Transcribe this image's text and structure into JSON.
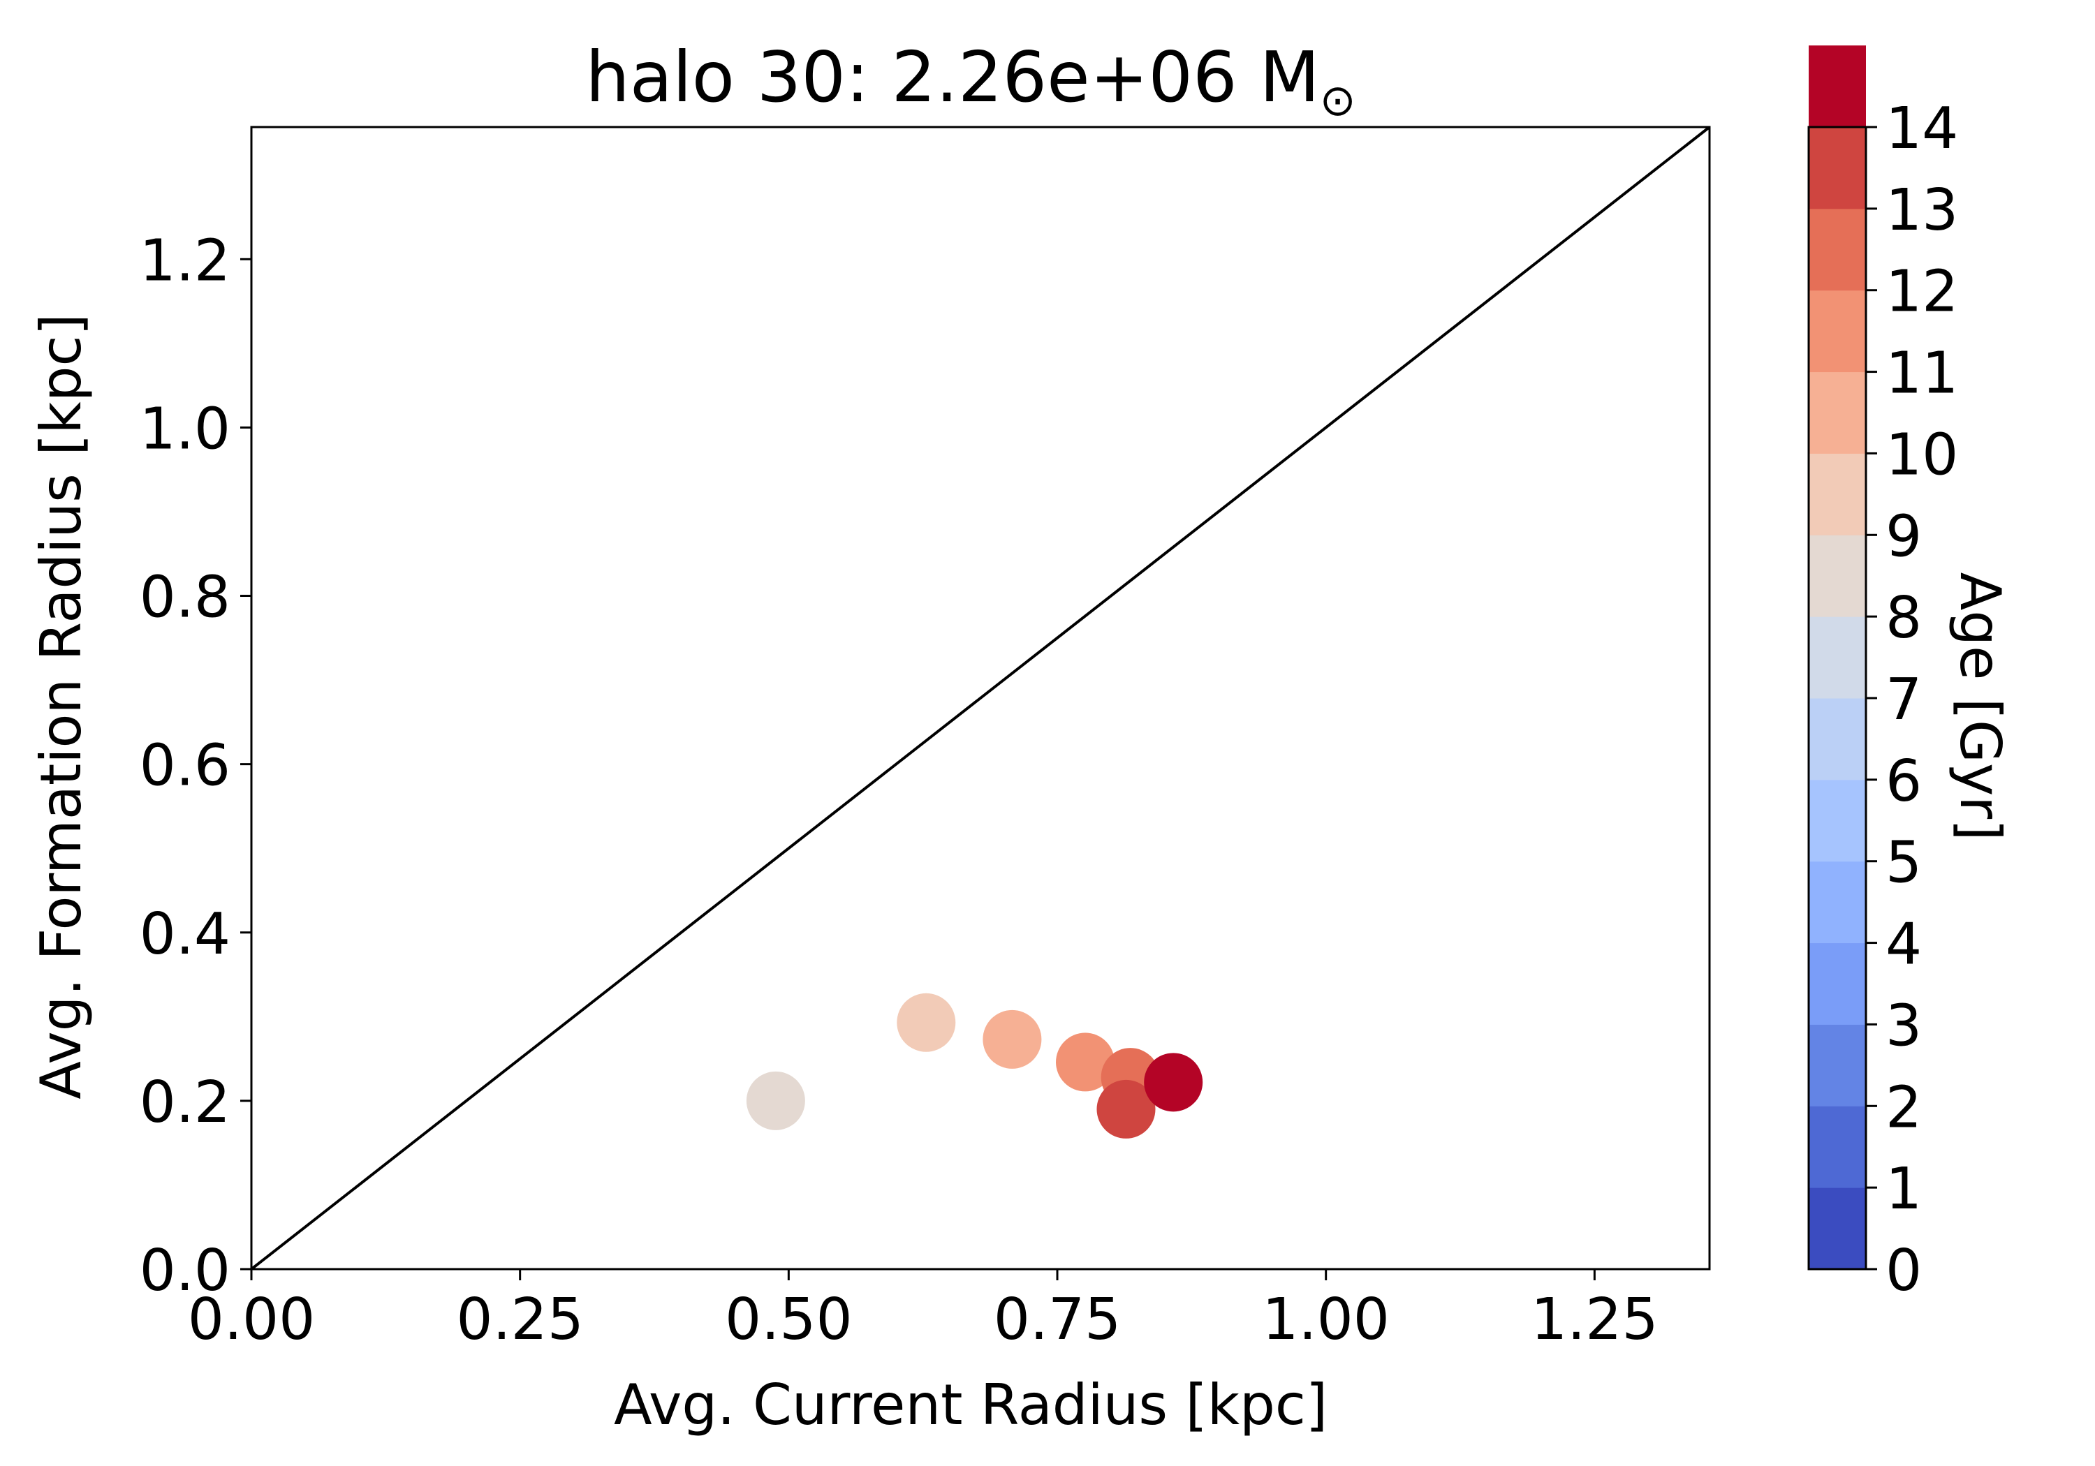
{
  "chart_data": {
    "type": "scatter",
    "title_main": "halo 30: 2.26e+06 M",
    "title_symbol": "⊙",
    "xlabel": "Avg. Current Radius [kpc]",
    "ylabel": "Avg. Formation Radius [kpc]",
    "xlim": [
      0,
      1.357
    ],
    "ylim": [
      0,
      1.357
    ],
    "xticks": [
      {
        "value": 0.0,
        "label": "0.00"
      },
      {
        "value": 0.25,
        "label": "0.25"
      },
      {
        "value": 0.5,
        "label": "0.50"
      },
      {
        "value": 0.75,
        "label": "0.75"
      },
      {
        "value": 1.0,
        "label": "1.00"
      },
      {
        "value": 1.25,
        "label": "1.25"
      }
    ],
    "yticks": [
      {
        "value": 0.0,
        "label": "0.0"
      },
      {
        "value": 0.2,
        "label": "0.2"
      },
      {
        "value": 0.4,
        "label": "0.4"
      },
      {
        "value": 0.6,
        "label": "0.6"
      },
      {
        "value": 0.8,
        "label": "0.8"
      },
      {
        "value": 1.0,
        "label": "1.0"
      },
      {
        "value": 1.2,
        "label": "1.2"
      }
    ],
    "reference_line": {
      "type": "one-to-one",
      "color": "#000000"
    },
    "points": [
      {
        "x": 0.488,
        "y": 0.2,
        "age_bin": [
          7,
          8
        ],
        "color": "#e4d9d2"
      },
      {
        "x": 0.628,
        "y": 0.293,
        "age_bin": [
          8,
          9
        ],
        "color": "#f2cbb7"
      },
      {
        "x": 0.708,
        "y": 0.273,
        "age_bin": [
          9,
          10
        ],
        "color": "#f6b094"
      },
      {
        "x": 0.776,
        "y": 0.246,
        "age_bin": [
          10,
          11
        ],
        "color": "#f29274"
      },
      {
        "x": 0.818,
        "y": 0.228,
        "age_bin": [
          11,
          12
        ],
        "color": "#e56f57"
      },
      {
        "x": 0.814,
        "y": 0.19,
        "age_bin": [
          12,
          13
        ],
        "color": "#cf4540"
      },
      {
        "x": 0.858,
        "y": 0.222,
        "age_bin": [
          13,
          14
        ],
        "color": "#b40426"
      }
    ],
    "colorbar": {
      "label": "Age [Gyr]",
      "min": 0,
      "max": 14,
      "tick_labels": [
        "0",
        "1",
        "2",
        "3",
        "4",
        "5",
        "6",
        "7",
        "8",
        "9",
        "10",
        "11",
        "12",
        "13",
        "14"
      ],
      "bin_colors": [
        "#3b4cc0",
        "#4e69d4",
        "#6384e5",
        "#7a9df8",
        "#90b2fe",
        "#a6c4fe",
        "#bbd0f6",
        "#d1dae9",
        "#e4d9d2",
        "#f2cbb7",
        "#f6b094",
        "#f29274",
        "#e56f57",
        "#cf4540",
        "#b40426"
      ]
    }
  }
}
